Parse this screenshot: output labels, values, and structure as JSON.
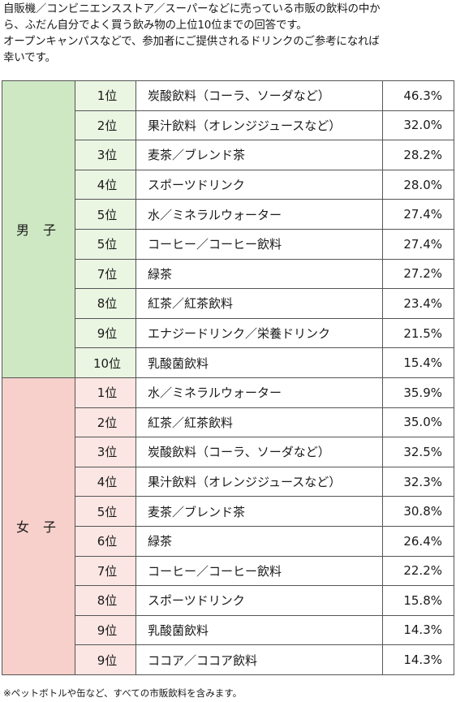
{
  "intro": {
    "lines": [
      "自販機／コンビニエンスストア／スーパーなどに売っている市販の飲料の中か",
      "ら、ふだん自分でよく買う飲み物の上位10位までの回答です。",
      "オープンキャンパスなどで、参加者にご提供されるドリンクのご参考になれば",
      "幸いです。"
    ]
  },
  "colors": {
    "male_group_bg": "#cfe8c4",
    "male_rank_bg": "#eaf5e2",
    "female_group_bg": "#f7d0cb",
    "female_rank_bg": "#fbe6e3",
    "border": "#555555"
  },
  "groups": [
    {
      "label": "男 子",
      "rows": [
        {
          "rank": "1位",
          "item": "炭酸飲料（コーラ、ソーダなど）",
          "pct": "46.3%"
        },
        {
          "rank": "2位",
          "item": "果汁飲料（オレンジジュースなど）",
          "pct": "32.0%"
        },
        {
          "rank": "3位",
          "item": "麦茶／ブレンド茶",
          "pct": "28.2%"
        },
        {
          "rank": "4位",
          "item": "スポーツドリンク",
          "pct": "28.0%"
        },
        {
          "rank": "5位",
          "item": "水／ミネラルウォーター",
          "pct": "27.4%"
        },
        {
          "rank": "5位",
          "item": "コーヒー／コーヒー飲料",
          "pct": "27.4%"
        },
        {
          "rank": "7位",
          "item": "緑茶",
          "pct": "27.2%"
        },
        {
          "rank": "8位",
          "item": "紅茶／紅茶飲料",
          "pct": "23.4%"
        },
        {
          "rank": "9位",
          "item": "エナジードリンク／栄養ドリンク",
          "pct": "21.5%"
        },
        {
          "rank": "10位",
          "item": "乳酸菌飲料",
          "pct": "15.4%"
        }
      ]
    },
    {
      "label": "女 子",
      "rows": [
        {
          "rank": "1位",
          "item": "水／ミネラルウォーター",
          "pct": "35.9%"
        },
        {
          "rank": "2位",
          "item": "紅茶／紅茶飲料",
          "pct": "35.0%"
        },
        {
          "rank": "3位",
          "item": "炭酸飲料（コーラ、ソーダなど）",
          "pct": "32.5%"
        },
        {
          "rank": "4位",
          "item": "果汁飲料（オレンジジュースなど）",
          "pct": "32.3%"
        },
        {
          "rank": "5位",
          "item": "麦茶／ブレンド茶",
          "pct": "30.8%"
        },
        {
          "rank": "6位",
          "item": "緑茶",
          "pct": "26.4%"
        },
        {
          "rank": "7位",
          "item": "コーヒー／コーヒー飲料",
          "pct": "22.2%"
        },
        {
          "rank": "8位",
          "item": "スポーツドリンク",
          "pct": "15.8%"
        },
        {
          "rank": "9位",
          "item": "乳酸菌飲料",
          "pct": "14.3%"
        },
        {
          "rank": "9位",
          "item": "ココア／ココア飲料",
          "pct": "14.3%"
        }
      ]
    }
  ],
  "footnote": "※ペットボトルや缶など、すべての市販飲料を含みます。"
}
